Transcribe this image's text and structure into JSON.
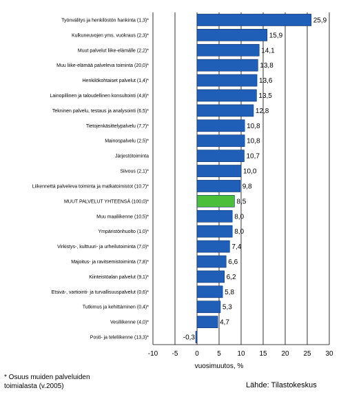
{
  "chart_data": {
    "type": "bar",
    "orientation": "horizontal",
    "categories": [
      "Työnvälitys ja henkilöstön hankinta (1,3)*",
      "Kulkuneuvojen yms. vuokraus (2,3)*",
      "Muut palvelut liike-elämälle (2,2)*",
      "Muu liike-elämää palveleva toiminta (20,0)*",
      "Henkilökohtaiset palvelut (1,4)*",
      "Lainopillinen ja taloudellinen konsultointi (4,8)*",
      "Tekninen palvelu, testaus ja analysointi (6,5)*",
      "Tietojenkäsittelypalvelu (7,7)*",
      "Mainospalvelu (2,5)*",
      "Järjestötoiminta",
      "Siivous (2,1)*",
      "Liikennettä palveleva toiminta ja matkatoimistot (10,7)*",
      "MUUT PALVELUT YHTEENSÄ (100,0)*",
      "Muu maaliikenne (10,5)*",
      "Ympäristönhuolto (1,0)*",
      "Virkistys-, kulttuuri- ja urheilutoiminta (7,0)*",
      "Majoitus- ja ravitsemistoiminta (7,8)*",
      "Kiinteistöalan palvelut (9,1)*",
      "Etsivä-, vartiointi- ja turvallisuuspalvelut (0,6)*",
      "Tutkimus ja kehittäminen (0,4)*",
      "Vesiliikenne (4,0)*",
      "Posti- ja teleliikenne (13,3)*"
    ],
    "values": [
      25.9,
      15.9,
      14.1,
      13.8,
      13.6,
      13.5,
      12.8,
      10.8,
      10.8,
      10.7,
      10.0,
      9.8,
      8.5,
      8.0,
      8.0,
      7.4,
      6.6,
      6.2,
      5.8,
      5.3,
      4.7,
      -0.3
    ],
    "value_labels": [
      "25,9",
      "15,9",
      "14,1",
      "13,8",
      "13,6",
      "13,5",
      "12,8",
      "10,8",
      "10,8",
      "10,7",
      "10,0",
      "9,8",
      "8,5",
      "8,0",
      "8,0",
      "7,4",
      "6,6",
      "6,2",
      "5,8",
      "5,3",
      "4,7",
      "-0,3"
    ],
    "highlight_category": "MUUT PALVELUT YHTEENSÄ (100,0)*",
    "xlabel": "vuosimuutos, %",
    "xlim": [
      -10,
      30
    ],
    "xticks": [
      -10,
      -5,
      0,
      5,
      10,
      15,
      20,
      25,
      30
    ],
    "grid": "vertical",
    "colors": {
      "bar": "#1f5fb8",
      "highlight": "#4cbf3a",
      "bar_edge": "#0d2f66",
      "grid": "#000000"
    }
  },
  "footnote": "* Osuus muiden palveluiden toimialasta (v.2005)",
  "source": "Lähde: Tilastokeskus"
}
